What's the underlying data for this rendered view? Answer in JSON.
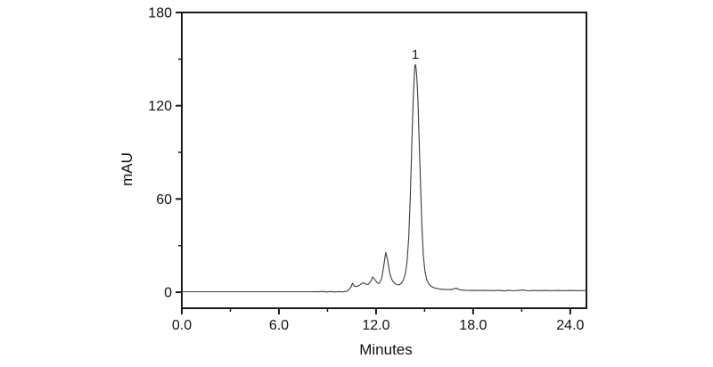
{
  "figure": {
    "background_color": "#ffffff",
    "axis_color": "#1a1a1a",
    "trace_color": "#3a3a3a"
  },
  "chart_data": {
    "type": "line",
    "title": "",
    "xlabel": "Minutes",
    "ylabel": "mAU",
    "xlim": [
      0,
      25
    ],
    "ylim": [
      -10.3,
      180
    ],
    "grid": false,
    "legend": null,
    "x_ticks": {
      "major": [
        0,
        6,
        12,
        18,
        24
      ],
      "major_labels": [
        "0.0",
        "6.0",
        "12.0",
        "18.0",
        "24.0"
      ],
      "minor": [
        3,
        9,
        15,
        21
      ]
    },
    "y_ticks": {
      "major": [
        0,
        60,
        120,
        180
      ],
      "major_labels": [
        "0",
        "60",
        "120",
        "180"
      ],
      "minor": [
        30,
        90,
        150
      ]
    },
    "annotations": [
      {
        "text": "1",
        "x_min": 14.43,
        "y_mAU": 153
      }
    ],
    "peaks": [
      {
        "label": "1",
        "retention_time_min": 14.4,
        "height_mAU": 146.5
      },
      {
        "label": "",
        "retention_time_min": 12.6,
        "height_mAU": 25.5
      },
      {
        "label": "",
        "retention_time_min": 11.8,
        "height_mAU": 9.8
      },
      {
        "label": "",
        "retention_time_min": 10.55,
        "height_mAU": 5.8
      },
      {
        "label": "",
        "retention_time_min": 16.9,
        "height_mAU": 2.6
      }
    ],
    "trace": [
      [
        0.0,
        0.3
      ],
      [
        0.5,
        0.3
      ],
      [
        1.0,
        0.3
      ],
      [
        1.5,
        0.3
      ],
      [
        2.0,
        0.3
      ],
      [
        2.5,
        0.3
      ],
      [
        3.0,
        0.3
      ],
      [
        3.5,
        0.3
      ],
      [
        4.0,
        0.3
      ],
      [
        4.5,
        0.3
      ],
      [
        5.0,
        0.3
      ],
      [
        5.5,
        0.3
      ],
      [
        6.0,
        0.3
      ],
      [
        6.5,
        0.3
      ],
      [
        7.0,
        0.3
      ],
      [
        7.5,
        0.3
      ],
      [
        8.0,
        0.3
      ],
      [
        8.4,
        0.25
      ],
      [
        8.7,
        0.45
      ],
      [
        9.0,
        0.15
      ],
      [
        9.2,
        0.45
      ],
      [
        9.45,
        0.15
      ],
      [
        9.7,
        0.4
      ],
      [
        9.95,
        0.2
      ],
      [
        10.15,
        0.5
      ],
      [
        10.3,
        1.2
      ],
      [
        10.45,
        3.4
      ],
      [
        10.55,
        5.8
      ],
      [
        10.65,
        4.0
      ],
      [
        10.78,
        3.6
      ],
      [
        10.92,
        4.1
      ],
      [
        11.05,
        5.0
      ],
      [
        11.2,
        6.1
      ],
      [
        11.35,
        5.3
      ],
      [
        11.5,
        4.9
      ],
      [
        11.65,
        6.6
      ],
      [
        11.8,
        9.8
      ],
      [
        11.95,
        7.8
      ],
      [
        12.08,
        6.0
      ],
      [
        12.2,
        5.7
      ],
      [
        12.35,
        9.0
      ],
      [
        12.48,
        17.0
      ],
      [
        12.6,
        25.5
      ],
      [
        12.72,
        20.5
      ],
      [
        12.83,
        13.0
      ],
      [
        12.95,
        8.6
      ],
      [
        13.1,
        6.2
      ],
      [
        13.25,
        5.1
      ],
      [
        13.4,
        4.6
      ],
      [
        13.55,
        5.6
      ],
      [
        13.7,
        8.0
      ],
      [
        13.82,
        12.5
      ],
      [
        13.92,
        20.0
      ],
      [
        14.02,
        35.0
      ],
      [
        14.12,
        62.0
      ],
      [
        14.22,
        98.0
      ],
      [
        14.3,
        125.0
      ],
      [
        14.37,
        141.0
      ],
      [
        14.4,
        145.5
      ],
      [
        14.43,
        146.5
      ],
      [
        14.47,
        144.5
      ],
      [
        14.52,
        138.0
      ],
      [
        14.58,
        126.0
      ],
      [
        14.65,
        103.0
      ],
      [
        14.74,
        72.0
      ],
      [
        14.83,
        44.0
      ],
      [
        14.92,
        24.0
      ],
      [
        15.02,
        13.5
      ],
      [
        15.13,
        8.0
      ],
      [
        15.27,
        5.2
      ],
      [
        15.42,
        3.7
      ],
      [
        15.6,
        2.8
      ],
      [
        15.8,
        2.3
      ],
      [
        16.05,
        1.9
      ],
      [
        16.3,
        1.7
      ],
      [
        16.55,
        1.7
      ],
      [
        16.75,
        1.9
      ],
      [
        16.88,
        2.5
      ],
      [
        16.98,
        2.6
      ],
      [
        17.1,
        1.8
      ],
      [
        17.3,
        1.4
      ],
      [
        17.55,
        1.2
      ],
      [
        17.8,
        1.1
      ],
      [
        18.1,
        1.2
      ],
      [
        18.4,
        1.1
      ],
      [
        18.7,
        1.2
      ],
      [
        19.0,
        1.1
      ],
      [
        19.3,
        1.0
      ],
      [
        19.6,
        1.3
      ],
      [
        19.9,
        0.8
      ],
      [
        20.2,
        1.3
      ],
      [
        20.5,
        0.9
      ],
      [
        20.8,
        1.2
      ],
      [
        21.1,
        1.4
      ],
      [
        21.4,
        0.9
      ],
      [
        21.7,
        1.1
      ],
      [
        22.0,
        1.0
      ],
      [
        22.4,
        1.1
      ],
      [
        22.8,
        1.0
      ],
      [
        23.2,
        1.1
      ],
      [
        23.6,
        1.0
      ],
      [
        24.0,
        1.1
      ],
      [
        24.5,
        1.0
      ],
      [
        25.0,
        1.1
      ]
    ]
  }
}
